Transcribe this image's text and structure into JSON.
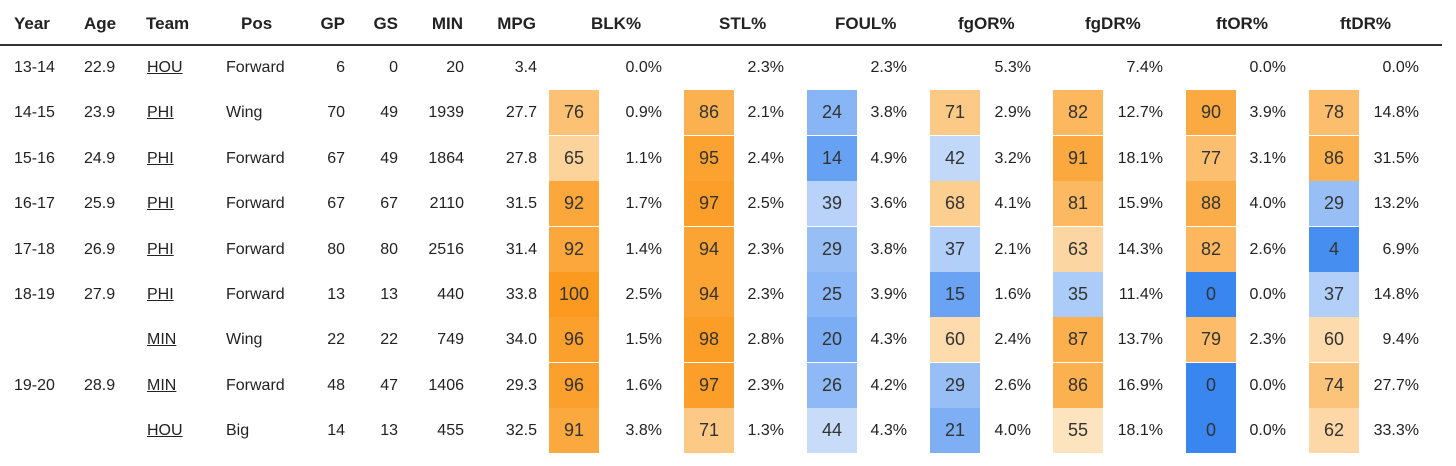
{
  "table": {
    "headers": {
      "year": "Year",
      "age": "Age",
      "team": "Team",
      "pos": "Pos",
      "gp": "GP",
      "gs": "GS",
      "min": "MIN",
      "mpg": "MPG",
      "blk": "BLK%",
      "stl": "STL%",
      "foul": "FOUL%",
      "fgor": "fgOR%",
      "fgdr": "fgDR%",
      "ftor": "ftOR%",
      "ftdr": "ftDR%"
    },
    "rows": [
      {
        "year": "13-14",
        "age": "22.9",
        "team": "HOU",
        "pos": "Forward",
        "gp": "6",
        "gs": "0",
        "min": "20",
        "mpg": "3.4",
        "blk_rank": "",
        "blk": "0.0%",
        "stl_rank": "",
        "stl": "2.3%",
        "foul_rank": "",
        "foul": "2.3%",
        "fgor_rank": "",
        "fgor": "5.3%",
        "fgdr_rank": "",
        "fgdr": "7.4%",
        "ftor_rank": "",
        "ftor": "0.0%",
        "ftdr_rank": "",
        "ftdr": "0.0%"
      },
      {
        "year": "14-15",
        "age": "23.9",
        "team": "PHI",
        "pos": "Wing",
        "gp": "70",
        "gs": "49",
        "min": "1939",
        "mpg": "27.7",
        "blk_rank": "76",
        "blk": "0.9%",
        "stl_rank": "86",
        "stl": "2.1%",
        "foul_rank": "24",
        "foul": "3.8%",
        "fgor_rank": "71",
        "fgor": "2.9%",
        "fgdr_rank": "82",
        "fgdr": "12.7%",
        "ftor_rank": "90",
        "ftor": "3.9%",
        "ftdr_rank": "78",
        "ftdr": "14.8%"
      },
      {
        "year": "15-16",
        "age": "24.9",
        "team": "PHI",
        "pos": "Forward",
        "gp": "67",
        "gs": "49",
        "min": "1864",
        "mpg": "27.8",
        "blk_rank": "65",
        "blk": "1.1%",
        "stl_rank": "95",
        "stl": "2.4%",
        "foul_rank": "14",
        "foul": "4.9%",
        "fgor_rank": "42",
        "fgor": "3.2%",
        "fgdr_rank": "91",
        "fgdr": "18.1%",
        "ftor_rank": "77",
        "ftor": "3.1%",
        "ftdr_rank": "86",
        "ftdr": "31.5%"
      },
      {
        "year": "16-17",
        "age": "25.9",
        "team": "PHI",
        "pos": "Forward",
        "gp": "67",
        "gs": "67",
        "min": "2110",
        "mpg": "31.5",
        "blk_rank": "92",
        "blk": "1.7%",
        "stl_rank": "97",
        "stl": "2.5%",
        "foul_rank": "39",
        "foul": "3.6%",
        "fgor_rank": "68",
        "fgor": "4.1%",
        "fgdr_rank": "81",
        "fgdr": "15.9%",
        "ftor_rank": "88",
        "ftor": "4.0%",
        "ftdr_rank": "29",
        "ftdr": "13.2%"
      },
      {
        "year": "17-18",
        "age": "26.9",
        "team": "PHI",
        "pos": "Forward",
        "gp": "80",
        "gs": "80",
        "min": "2516",
        "mpg": "31.4",
        "blk_rank": "92",
        "blk": "1.4%",
        "stl_rank": "94",
        "stl": "2.3%",
        "foul_rank": "29",
        "foul": "3.8%",
        "fgor_rank": "37",
        "fgor": "2.1%",
        "fgdr_rank": "63",
        "fgdr": "14.3%",
        "ftor_rank": "82",
        "ftor": "2.6%",
        "ftdr_rank": "4",
        "ftdr": "6.9%"
      },
      {
        "year": "18-19",
        "age": "27.9",
        "team": "PHI",
        "pos": "Forward",
        "gp": "13",
        "gs": "13",
        "min": "440",
        "mpg": "33.8",
        "blk_rank": "100",
        "blk": "2.5%",
        "stl_rank": "94",
        "stl": "2.3%",
        "foul_rank": "25",
        "foul": "3.9%",
        "fgor_rank": "15",
        "fgor": "1.6%",
        "fgdr_rank": "35",
        "fgdr": "11.4%",
        "ftor_rank": "0",
        "ftor": "0.0%",
        "ftdr_rank": "37",
        "ftdr": "14.8%"
      },
      {
        "year": "",
        "age": "",
        "team": "MIN",
        "pos": "Wing",
        "gp": "22",
        "gs": "22",
        "min": "749",
        "mpg": "34.0",
        "blk_rank": "96",
        "blk": "1.5%",
        "stl_rank": "98",
        "stl": "2.8%",
        "foul_rank": "20",
        "foul": "4.3%",
        "fgor_rank": "60",
        "fgor": "2.4%",
        "fgdr_rank": "87",
        "fgdr": "13.7%",
        "ftor_rank": "79",
        "ftor": "2.3%",
        "ftdr_rank": "60",
        "ftdr": "9.4%"
      },
      {
        "year": "19-20",
        "age": "28.9",
        "team": "MIN",
        "pos": "Forward",
        "gp": "48",
        "gs": "47",
        "min": "1406",
        "mpg": "29.3",
        "blk_rank": "96",
        "blk": "1.6%",
        "stl_rank": "97",
        "stl": "2.3%",
        "foul_rank": "26",
        "foul": "4.2%",
        "fgor_rank": "29",
        "fgor": "2.6%",
        "fgdr_rank": "86",
        "fgdr": "16.9%",
        "ftor_rank": "0",
        "ftor": "0.0%",
        "ftdr_rank": "74",
        "ftdr": "27.7%"
      },
      {
        "year": "",
        "age": "",
        "team": "HOU",
        "pos": "Big",
        "gp": "14",
        "gs": "13",
        "min": "455",
        "mpg": "32.5",
        "blk_rank": "91",
        "blk": "3.8%",
        "stl_rank": "71",
        "stl": "1.3%",
        "foul_rank": "44",
        "foul": "4.3%",
        "fgor_rank": "21",
        "fgor": "4.0%",
        "fgdr_rank": "55",
        "fgdr": "18.1%",
        "ftor_rank": "0",
        "ftor": "0.0%",
        "ftdr_rank": "62",
        "ftdr": "33.3%"
      }
    ]
  },
  "colors": {
    "orange_strong": "#fb9a1f",
    "orange_light": "#fdebd0",
    "blue_strong": "#3a86f0",
    "blue_light": "#dbe8fb",
    "header_rule": "#333333"
  }
}
